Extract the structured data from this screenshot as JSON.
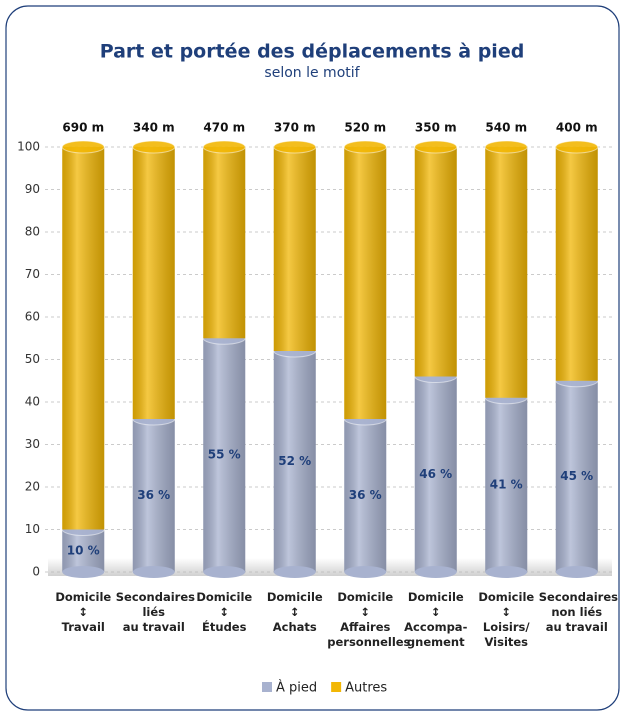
{
  "chart_data": {
    "type": "bar",
    "stacked": true,
    "title": "Part et portée des déplacements à pied",
    "subtitle": "selon le motif",
    "categories": [
      "Domicile\n↕\nTravail",
      "Secondaires\nliés\nau travail",
      "Domicile\n↕\nÉtudes",
      "Domicile\n↕\nAchats",
      "Domicile\n↕\nAffaires\npersonnelles",
      "Domicile\n↕\nAccompa-\ngnement",
      "Domicile\n↕\nLoisirs/\nVisites",
      "Secondaires\nnon liés\nau travail"
    ],
    "distance_labels": [
      "690 m",
      "340 m",
      "470 m",
      "370 m",
      "520 m",
      "350 m",
      "540 m",
      "400 m"
    ],
    "series": [
      {
        "name": "À pied",
        "color": "#a8b2cf",
        "values": [
          10,
          36,
          55,
          52,
          36,
          46,
          41,
          45
        ],
        "value_labels": [
          "10 %",
          "36 %",
          "55 %",
          "52 %",
          "36 %",
          "46 %",
          "41 %",
          "45 %"
        ]
      },
      {
        "name": "Autres",
        "color": "#f2b705",
        "values": [
          90,
          64,
          45,
          48,
          64,
          54,
          59,
          55
        ]
      }
    ],
    "ylim": [
      0,
      100
    ],
    "yticks": [
      0,
      10,
      20,
      30,
      40,
      50,
      60,
      70,
      80,
      90,
      100
    ],
    "grid": true
  }
}
